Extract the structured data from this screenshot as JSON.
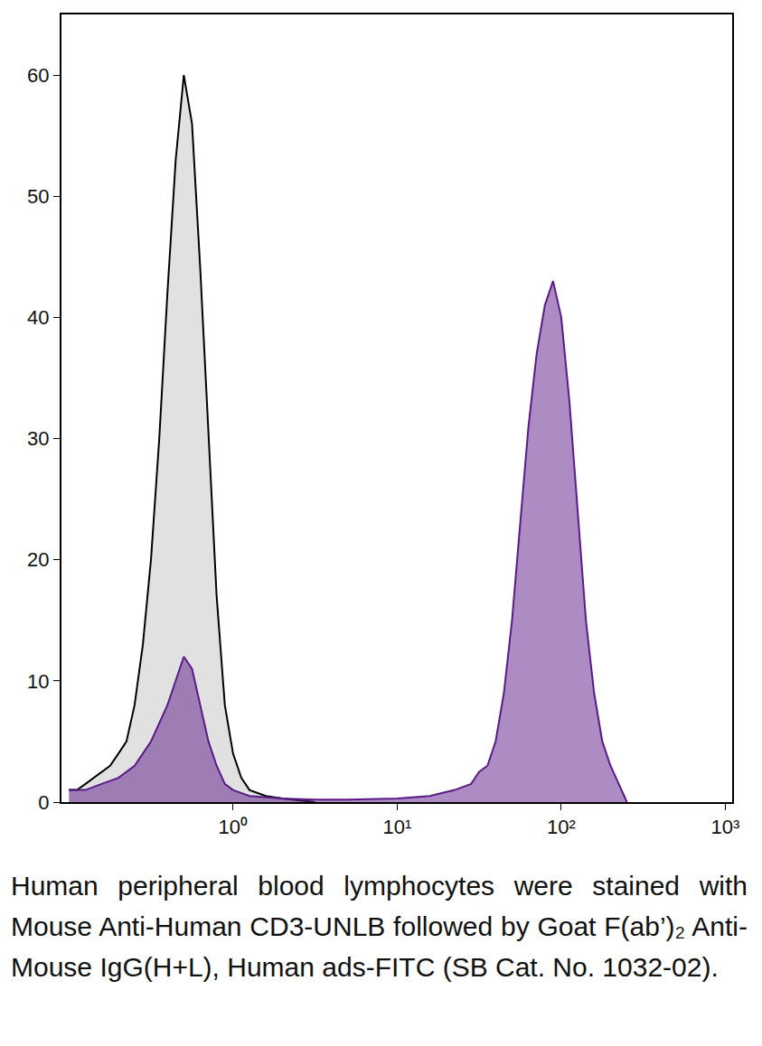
{
  "chart_data": {
    "type": "area",
    "caption": "Human peripheral blood lymphocytes were stained with Mouse Anti-Human CD3-UNLB followed by Goat F(ab’)₂ Anti-Mouse IgG(H+L), Human ads-FITC (SB Cat. No. 1032-02).",
    "log": "x",
    "grid": false,
    "xlim": [
      0.09,
      1100
    ],
    "xticks": [
      {
        "value": 1,
        "label": "10⁰"
      },
      {
        "value": 10,
        "label": "10¹"
      },
      {
        "value": 100,
        "label": "10²"
      },
      {
        "value": 1000,
        "label": "10³"
      }
    ],
    "ylim": [
      0,
      65
    ],
    "yticks": [
      0,
      10,
      20,
      30,
      40,
      50,
      60
    ],
    "series": [
      {
        "color": "#000000",
        "x": [
          0.1,
          0.112,
          0.126,
          0.141,
          0.158,
          0.178,
          0.2,
          0.224,
          0.251,
          0.282,
          0.316,
          0.355,
          0.398,
          0.447,
          0.501,
          0.562,
          0.631,
          0.708,
          0.794,
          0.891,
          1,
          1.122,
          1.259,
          1.585,
          1.995,
          3.16
        ],
        "values": [
          1,
          1,
          1.5,
          2,
          2.5,
          3,
          4,
          5,
          8,
          13,
          20,
          30,
          42,
          53,
          60,
          56,
          44,
          30,
          17,
          8,
          4,
          2,
          1,
          0.5,
          0.3,
          0
        ]
      },
      {
        "color": "#5b1a87",
        "x": [
          0.1,
          0.126,
          0.158,
          0.2,
          0.251,
          0.316,
          0.398,
          0.447,
          0.501,
          0.562,
          0.631,
          0.708,
          0.794,
          0.891,
          1,
          1.259,
          2,
          3.16,
          5.01,
          10,
          15.8,
          22.4,
          28.2,
          31.6,
          35.5,
          39.8,
          44.7,
          50.1,
          56.2,
          63.1,
          70.8,
          79.4,
          89.1,
          100,
          112.2,
          125.9,
          141.3,
          158.5,
          177.8,
          199.5,
          223.9,
          251.2
        ],
        "values": [
          1,
          1,
          1.5,
          2,
          3,
          5,
          8,
          10,
          12,
          11,
          8,
          5,
          3,
          1.5,
          1,
          0.5,
          0.3,
          0.2,
          0.2,
          0.3,
          0.5,
          1,
          1.5,
          2.5,
          3,
          5,
          9,
          15,
          23,
          31,
          37,
          41,
          43,
          40,
          33,
          24,
          15,
          9,
          5,
          3,
          1.5,
          0
        ]
      }
    ]
  }
}
